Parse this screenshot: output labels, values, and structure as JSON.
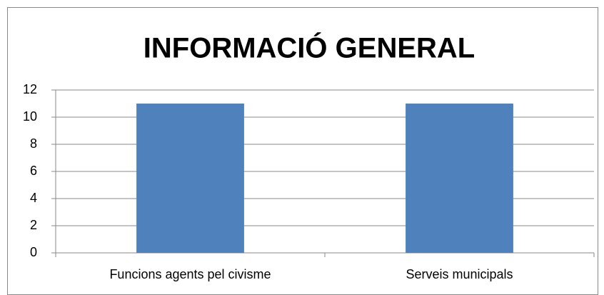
{
  "chart_data": {
    "type": "bar",
    "title": "INFORMACIÓ GENERAL",
    "categories": [
      "Funcions agents pel civisme",
      "Serveis municipals"
    ],
    "values": [
      11,
      11
    ],
    "color": "#4f81bd",
    "ylim": [
      0,
      12
    ],
    "yticks": [
      0,
      2,
      4,
      6,
      8,
      10,
      12
    ],
    "grid": true
  }
}
